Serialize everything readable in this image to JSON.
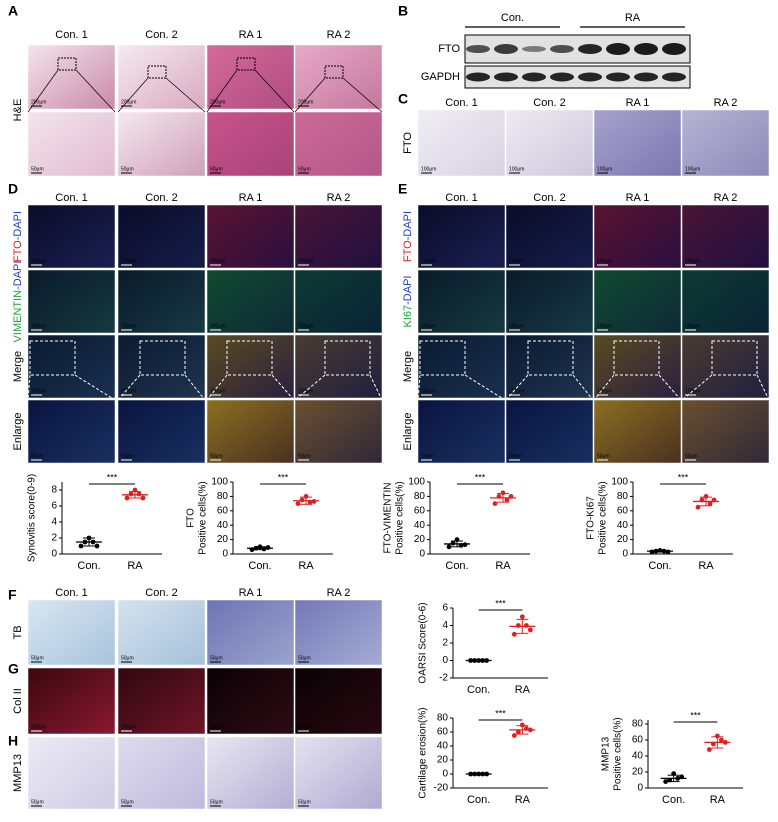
{
  "labels": [
    "A",
    "B",
    "C",
    "D",
    "E",
    "F",
    "G",
    "H"
  ],
  "A": {
    "columns": [
      "Con. 1",
      "Con. 2",
      "RA 1",
      "RA 2"
    ],
    "row_label": "H&E",
    "scale": [
      "200μm",
      "50μm"
    ]
  },
  "B": {
    "groups": [
      "Con.",
      "RA"
    ],
    "bands": [
      "FTO",
      "GAPDH"
    ]
  },
  "C": {
    "columns": [
      "Con. 1",
      "Con. 2",
      "RA 1",
      "RA 2"
    ],
    "row_label": "FTO",
    "scale": "100μm"
  },
  "D": {
    "columns": [
      "Con. 1",
      "Con. 2",
      "RA 1",
      "RA 2"
    ],
    "rows": [
      [
        {
          "text": "FTO",
          "color": "#e02020"
        },
        {
          "text": "-DAPI",
          "color": "#2040c0"
        }
      ],
      [
        {
          "text": "VIMENTIN",
          "color": "#20a040"
        },
        {
          "text": "-DAPI",
          "color": "#2040c0"
        }
      ],
      [
        {
          "text": "Merge",
          "color": "#000000"
        }
      ],
      [
        {
          "text": "Enlarge",
          "color": "#000000"
        }
      ]
    ],
    "scale": [
      "100μm",
      "100μm",
      "100μm",
      "50μm"
    ]
  },
  "E": {
    "columns": [
      "Con. 1",
      "Con. 2",
      "RA 1",
      "RA 2"
    ],
    "rows": [
      [
        {
          "text": "FTO",
          "color": "#e02020"
        },
        {
          "text": "-DAPI",
          "color": "#2040c0"
        }
      ],
      [
        {
          "text": "KI67",
          "color": "#20a040"
        },
        {
          "text": "-DAPI",
          "color": "#2040c0"
        }
      ],
      [
        {
          "text": "Merge",
          "color": "#000000"
        }
      ],
      [
        {
          "text": "Enlarge",
          "color": "#000000"
        }
      ]
    ],
    "scale": [
      "100μm",
      "100μm",
      "100μm",
      "50μm"
    ]
  },
  "F": {
    "columns": [
      "Con. 1",
      "Con. 2",
      "RA 1",
      "RA 2"
    ],
    "row_label": "TB",
    "scale": "50μm"
  },
  "G": {
    "row_label": "Col II",
    "scale": "200μm"
  },
  "H": {
    "row_label": "MMP13",
    "scale": "50μm"
  },
  "chart_data": [
    {
      "type": "scatter",
      "ylabel": [
        "Synovitis score(0-9)"
      ],
      "categories": [
        "Con.",
        "RA"
      ],
      "ylim": [
        0,
        9
      ],
      "yticks": [
        0,
        2,
        4,
        6,
        8
      ],
      "significance": "***",
      "series": [
        {
          "color": "#000000",
          "values": [
            1,
            1.5,
            2,
            1.5,
            1
          ],
          "mean": 1.5,
          "sd": 0.5
        },
        {
          "color": "#e02020",
          "values": [
            7,
            7.5,
            8,
            7.5,
            7
          ],
          "mean": 7.4,
          "sd": 0.4
        }
      ]
    },
    {
      "type": "scatter",
      "ylabel": [
        "FTO",
        "Positive cells(%)"
      ],
      "categories": [
        "Con.",
        "RA"
      ],
      "ylim": [
        0,
        100
      ],
      "yticks": [
        0,
        20,
        40,
        60,
        80,
        100
      ],
      "significance": "***",
      "series": [
        {
          "color": "#000000",
          "values": [
            6,
            8,
            10,
            7,
            9
          ],
          "mean": 8,
          "sd": 2
        },
        {
          "color": "#e02020",
          "values": [
            70,
            75,
            80,
            72,
            73
          ],
          "mean": 74,
          "sd": 5
        }
      ]
    },
    {
      "type": "scatter",
      "ylabel": [
        "FTO-VIMENTIN",
        "Positive cells(%)"
      ],
      "categories": [
        "Con.",
        "RA"
      ],
      "ylim": [
        0,
        100
      ],
      "yticks": [
        0,
        20,
        40,
        60,
        80,
        100
      ],
      "significance": "***",
      "series": [
        {
          "color": "#000000",
          "values": [
            10,
            15,
            20,
            12,
            13
          ],
          "mean": 14,
          "sd": 4
        },
        {
          "color": "#e02020",
          "values": [
            70,
            80,
            85,
            75,
            80
          ],
          "mean": 78,
          "sd": 6
        }
      ]
    },
    {
      "type": "scatter",
      "ylabel": [
        "FTO-KI67",
        "Positive cells(%)"
      ],
      "categories": [
        "Con.",
        "RA"
      ],
      "ylim": [
        0,
        100
      ],
      "yticks": [
        0,
        20,
        40,
        60,
        80,
        100
      ],
      "significance": "***",
      "series": [
        {
          "color": "#000000",
          "values": [
            3,
            4,
            5,
            4,
            3
          ],
          "mean": 4,
          "sd": 1
        },
        {
          "color": "#e02020",
          "values": [
            65,
            75,
            80,
            70,
            75
          ],
          "mean": 73,
          "sd": 6
        }
      ]
    },
    {
      "type": "scatter",
      "ylabel": [
        "OARSI Score(0-6)"
      ],
      "categories": [
        "Con.",
        "RA"
      ],
      "ylim": [
        -2,
        6
      ],
      "yticks": [
        -2,
        0,
        2,
        4,
        6
      ],
      "significance": "***",
      "series": [
        {
          "color": "#000000",
          "values": [
            0,
            0,
            0,
            0,
            0
          ],
          "mean": 0,
          "sd": 0
        },
        {
          "color": "#e02020",
          "values": [
            3,
            4,
            5,
            4,
            3.5
          ],
          "mean": 3.9,
          "sd": 0.8
        }
      ]
    },
    {
      "type": "scatter",
      "ylabel": [
        "Cartilage erosion(%)"
      ],
      "categories": [
        "Con.",
        "RA"
      ],
      "ylim": [
        -20,
        80
      ],
      "yticks": [
        -20,
        0,
        20,
        40,
        60,
        80
      ],
      "significance": "***",
      "series": [
        {
          "color": "#000000",
          "values": [
            0,
            0,
            0,
            0,
            0
          ],
          "mean": 0,
          "sd": 0
        },
        {
          "color": "#e02020",
          "values": [
            55,
            60,
            70,
            65,
            63
          ],
          "mean": 63,
          "sd": 6
        }
      ]
    },
    {
      "type": "scatter",
      "ylabel": [
        "MMP13",
        "Positive cells(%)"
      ],
      "categories": [
        "Con.",
        "RA"
      ],
      "ylim": [
        0,
        85
      ],
      "yticks": [
        0,
        20,
        40,
        60,
        80
      ],
      "significance": "***",
      "series": [
        {
          "color": "#000000",
          "values": [
            8,
            10,
            18,
            12,
            14
          ],
          "mean": 12,
          "sd": 4
        },
        {
          "color": "#e02020",
          "values": [
            48,
            55,
            65,
            60,
            57
          ],
          "mean": 57,
          "sd": 7
        }
      ]
    }
  ]
}
